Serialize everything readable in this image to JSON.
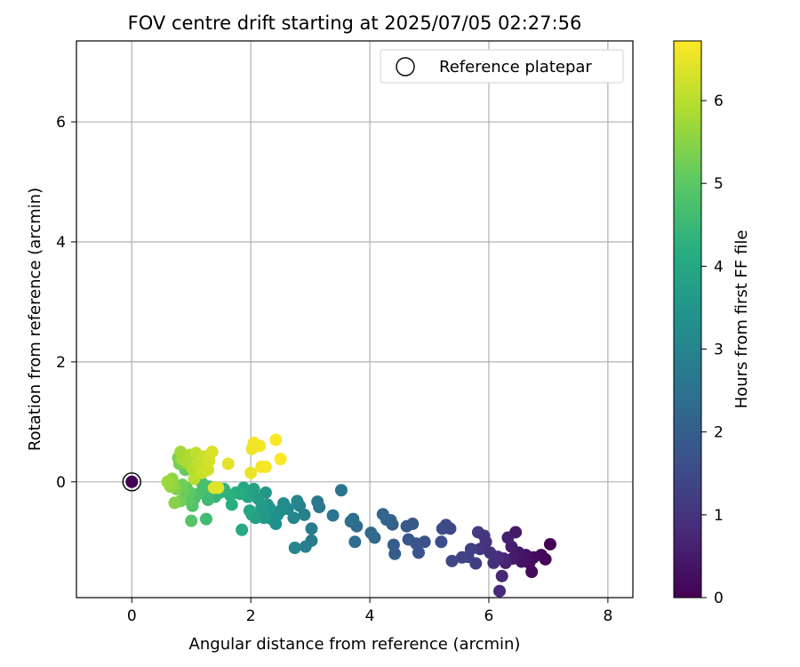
{
  "chart_data": {
    "type": "scatter",
    "title": "FOV centre drift starting at 2025/07/05 02:27:56",
    "xlabel": "Angular distance from reference (arcmin)",
    "ylabel": "Rotation from reference (arcmin)",
    "xlim": [
      -0.93,
      8.42
    ],
    "ylim": [
      -1.93,
      7.35
    ],
    "xticks": [
      0,
      2,
      4,
      6,
      8
    ],
    "yticks": [
      0,
      2,
      4,
      6
    ],
    "grid": true,
    "legend": {
      "position": "top-right",
      "entries": [
        "Reference platepar"
      ]
    },
    "colorbar": {
      "label": "Hours from first FF file",
      "range": [
        0,
        6.72
      ],
      "ticks": [
        0,
        1,
        2,
        3,
        4,
        5,
        6
      ],
      "colormap": "viridis"
    },
    "reference_point": {
      "x": 0,
      "y": 0
    },
    "series": [
      {
        "points": [
          [
            7.03,
            -1.04,
            0.0
          ],
          [
            6.95,
            -1.29,
            0.05
          ],
          [
            6.88,
            -1.22,
            0.1
          ],
          [
            6.75,
            -1.26,
            0.15
          ],
          [
            6.72,
            -1.5,
            0.2
          ],
          [
            6.68,
            -1.35,
            0.25
          ],
          [
            6.62,
            -1.22,
            0.3
          ],
          [
            6.55,
            -1.33,
            0.35
          ],
          [
            6.5,
            -1.18,
            0.4
          ],
          [
            6.45,
            -0.84,
            0.45
          ],
          [
            6.4,
            -1.28,
            0.5
          ],
          [
            6.38,
            -1.08,
            0.55
          ],
          [
            6.32,
            -0.93,
            0.6
          ],
          [
            6.28,
            -1.35,
            0.65
          ],
          [
            6.25,
            -1.28,
            0.7
          ],
          [
            6.22,
            -1.57,
            0.75
          ],
          [
            6.18,
            -1.82,
            0.8
          ],
          [
            6.15,
            -1.25,
            0.85
          ],
          [
            6.08,
            -1.35,
            0.9
          ],
          [
            6.02,
            -1.18,
            0.95
          ],
          [
            5.95,
            -1.0,
            1.0
          ],
          [
            5.92,
            -0.9,
            1.05
          ],
          [
            5.85,
            -1.12,
            1.1
          ],
          [
            5.82,
            -0.84,
            1.15
          ],
          [
            5.78,
            -1.36,
            1.2
          ],
          [
            5.7,
            -1.12,
            1.25
          ],
          [
            5.65,
            -1.25,
            1.3
          ],
          [
            5.55,
            -1.26,
            1.35
          ],
          [
            5.38,
            -1.32,
            1.4
          ],
          [
            5.35,
            -0.78,
            1.45
          ],
          [
            5.28,
            -0.72,
            1.5
          ],
          [
            5.22,
            -0.78,
            1.55
          ],
          [
            5.2,
            -1.0,
            1.6
          ],
          [
            4.92,
            -1.0,
            1.65
          ],
          [
            4.82,
            -1.18,
            1.7
          ],
          [
            4.78,
            -1.03,
            1.75
          ],
          [
            4.72,
            -0.7,
            1.8
          ],
          [
            4.65,
            -0.96,
            1.85
          ],
          [
            4.62,
            -0.74,
            1.9
          ],
          [
            4.42,
            -1.2,
            1.95
          ],
          [
            4.4,
            -1.05,
            2.0
          ],
          [
            4.38,
            -0.71,
            2.05
          ],
          [
            4.35,
            -0.64,
            2.1
          ],
          [
            4.28,
            -0.63,
            2.15
          ],
          [
            4.22,
            -0.54,
            2.2
          ],
          [
            4.08,
            -0.93,
            2.25
          ],
          [
            4.02,
            -0.85,
            2.3
          ],
          [
            3.78,
            -0.74,
            2.35
          ],
          [
            3.75,
            -1.0,
            2.4
          ],
          [
            3.72,
            -0.62,
            2.45
          ],
          [
            3.68,
            -0.66,
            2.5
          ],
          [
            3.52,
            -0.14,
            2.55
          ],
          [
            3.38,
            -0.56,
            2.6
          ],
          [
            3.15,
            -0.42,
            2.65
          ],
          [
            3.12,
            -0.33,
            2.7
          ],
          [
            3.02,
            -0.98,
            2.75
          ],
          [
            3.02,
            -0.78,
            2.8
          ],
          [
            2.92,
            -1.08,
            2.85
          ],
          [
            2.9,
            -0.55,
            2.9
          ],
          [
            2.82,
            -0.4,
            2.95
          ],
          [
            2.78,
            -0.32,
            3.0
          ],
          [
            2.74,
            -1.1,
            3.05
          ],
          [
            2.72,
            -0.6,
            3.1
          ],
          [
            2.62,
            -0.45,
            3.15
          ],
          [
            2.55,
            -0.36,
            3.2
          ],
          [
            2.5,
            -0.48,
            3.25
          ],
          [
            2.45,
            -0.55,
            3.3
          ],
          [
            2.42,
            -0.7,
            3.35
          ],
          [
            2.35,
            -0.62,
            3.4
          ],
          [
            2.32,
            -0.44,
            3.45
          ],
          [
            2.28,
            -0.38,
            3.5
          ],
          [
            2.25,
            -0.18,
            3.55
          ],
          [
            2.22,
            -0.6,
            3.6
          ],
          [
            2.18,
            -0.42,
            3.65
          ],
          [
            2.12,
            -0.28,
            3.7
          ],
          [
            2.08,
            -0.6,
            3.75
          ],
          [
            2.05,
            -0.12,
            3.8
          ],
          [
            2.02,
            -0.55,
            3.85
          ],
          [
            1.98,
            -0.48,
            3.9
          ],
          [
            1.95,
            -0.25,
            3.95
          ],
          [
            1.88,
            -0.1,
            4.0
          ],
          [
            1.85,
            -0.8,
            4.05
          ],
          [
            1.82,
            -0.2,
            4.1
          ],
          [
            1.75,
            -0.18,
            4.15
          ],
          [
            1.68,
            -0.38,
            4.2
          ],
          [
            1.65,
            -0.22,
            4.25
          ],
          [
            1.55,
            -0.12,
            4.3
          ],
          [
            1.48,
            -0.18,
            4.35
          ],
          [
            1.4,
            -0.25,
            4.4
          ],
          [
            1.32,
            -0.18,
            4.45
          ],
          [
            1.3,
            -0.08,
            4.5
          ],
          [
            1.28,
            -0.3,
            4.55
          ],
          [
            1.25,
            -0.62,
            4.6
          ],
          [
            1.2,
            -0.12,
            4.65
          ],
          [
            1.18,
            -0.02,
            4.7
          ],
          [
            1.12,
            -0.2,
            4.75
          ],
          [
            1.05,
            -0.28,
            4.8
          ],
          [
            1.02,
            -0.4,
            4.85
          ],
          [
            1.0,
            -0.65,
            4.9
          ],
          [
            0.98,
            -0.18,
            4.95
          ],
          [
            0.95,
            -0.3,
            5.0
          ],
          [
            0.92,
            -0.1,
            5.05
          ],
          [
            0.9,
            0.2,
            5.1
          ],
          [
            0.88,
            -0.15,
            5.15
          ],
          [
            0.85,
            -0.05,
            5.2
          ],
          [
            0.82,
            -0.32,
            5.25
          ],
          [
            0.8,
            0.3,
            5.3
          ],
          [
            0.78,
            0.4,
            5.35
          ],
          [
            0.75,
            -0.12,
            5.4
          ],
          [
            0.72,
            -0.35,
            5.45
          ],
          [
            0.7,
            -0.05,
            5.5
          ],
          [
            0.68,
            0.05,
            5.55
          ],
          [
            0.65,
            -0.08,
            5.6
          ],
          [
            0.62,
            -0.02,
            5.65
          ],
          [
            0.6,
            0.0,
            5.7
          ],
          [
            0.82,
            0.5,
            5.75
          ],
          [
            0.85,
            0.38,
            5.8
          ],
          [
            0.92,
            0.32,
            5.85
          ],
          [
            0.98,
            0.45,
            5.9
          ],
          [
            1.02,
            0.22,
            5.95
          ],
          [
            1.05,
            0.05,
            6.0
          ],
          [
            1.08,
            0.48,
            6.05
          ],
          [
            1.12,
            0.3,
            6.1
          ],
          [
            1.18,
            0.15,
            6.15
          ],
          [
            1.22,
            0.42,
            6.2
          ],
          [
            1.28,
            0.2,
            6.25
          ],
          [
            1.3,
            0.35,
            6.3
          ],
          [
            1.35,
            0.5,
            6.35
          ],
          [
            1.38,
            -0.1,
            6.38
          ],
          [
            1.45,
            -0.1,
            6.4
          ],
          [
            1.62,
            0.3,
            6.45
          ],
          [
            2.0,
            0.15,
            6.5
          ],
          [
            2.02,
            0.55,
            6.55
          ],
          [
            2.05,
            0.65,
            6.58
          ],
          [
            2.15,
            0.6,
            6.6
          ],
          [
            2.18,
            0.25,
            6.63
          ],
          [
            2.25,
            0.25,
            6.65
          ],
          [
            2.42,
            0.7,
            6.68
          ],
          [
            2.5,
            0.38,
            6.72
          ]
        ]
      }
    ]
  }
}
